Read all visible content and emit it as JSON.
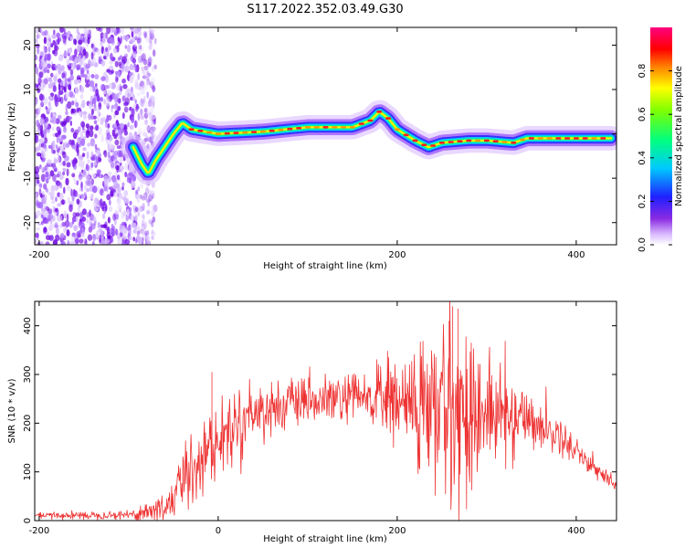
{
  "title": "S117.2022.352.03.49.G30",
  "chart_data": [
    {
      "type": "heatmap",
      "xlabel": "Height of straight line (km)",
      "ylabel": "Frequency (Hz)",
      "xlim": [
        -205,
        445
      ],
      "ylim": [
        -25,
        24
      ],
      "xticks": [
        "-200",
        "0",
        "200",
        "400"
      ],
      "yticks": [
        "20",
        "10",
        "0",
        "-10",
        "-20"
      ],
      "colorbar": {
        "label": "Normalized spectral amplitude",
        "range": [
          0,
          1
        ],
        "ticks": [
          "0.0",
          "0.2",
          "0.4",
          "0.6",
          "0.8"
        ]
      },
      "ridge": {
        "x": [
          -95,
          -85,
          -78,
          -70,
          -60,
          -50,
          -40,
          -30,
          0,
          50,
          100,
          150,
          170,
          180,
          190,
          200,
          220,
          235,
          250,
          280,
          300,
          330,
          345,
          360,
          400,
          440
        ],
        "y": [
          -3,
          -7,
          -9,
          -6,
          -3,
          0,
          2.5,
          1,
          0,
          0.5,
          1.5,
          1.5,
          3,
          5,
          3.5,
          1,
          -1.5,
          -3,
          -2,
          -1.5,
          -1.5,
          -2,
          -1,
          -1,
          -1,
          -1
        ]
      },
      "noise_region": {
        "x": [
          -205,
          -90
        ],
        "y": [
          -25,
          24
        ]
      }
    },
    {
      "type": "line",
      "xlabel": "Height of straight line (km)",
      "ylabel": "SNR (10 * v/v)",
      "xlim": [
        -205,
        445
      ],
      "ylim": [
        0,
        450
      ],
      "xticks": [
        "-200",
        "0",
        "200",
        "400"
      ],
      "yticks": [
        "0",
        "100",
        "200",
        "300",
        "400"
      ],
      "series": [
        {
          "color": "#ee3333",
          "envelope": {
            "x": [
              -205,
              -100,
              -60,
              -50,
              -40,
              -30,
              -20,
              0,
              20,
              40,
              60,
              80,
              100,
              120,
              140,
              160,
              180,
              200,
              220,
              240,
              260,
              280,
              300,
              320,
              340,
              360,
              380,
              400,
              420,
              440
            ],
            "y": [
              10,
              12,
              25,
              50,
              80,
              110,
              130,
              160,
              200,
              225,
              230,
              240,
              240,
              245,
              250,
              250,
              255,
              245,
              235,
              225,
              230,
              225,
              220,
              215,
              215,
              195,
              175,
              145,
              110,
              75
            ]
          },
          "noise": {
            "x": [
              -205,
              -100,
              -60,
              -30,
              0,
              100,
              150,
              200,
              220,
              260,
              300,
              350,
              400,
              440
            ],
            "amp": [
              4,
              5,
              20,
              45,
              40,
              25,
              30,
              50,
              80,
              110,
              70,
              30,
              15,
              12
            ]
          },
          "spikes": [
            {
              "x": -7,
              "y": 305
            },
            {
              "x": 262,
              "y": 440
            },
            {
              "x": 268,
              "y": 435
            },
            {
              "x": 258,
              "y": 410
            }
          ]
        }
      ]
    }
  ]
}
